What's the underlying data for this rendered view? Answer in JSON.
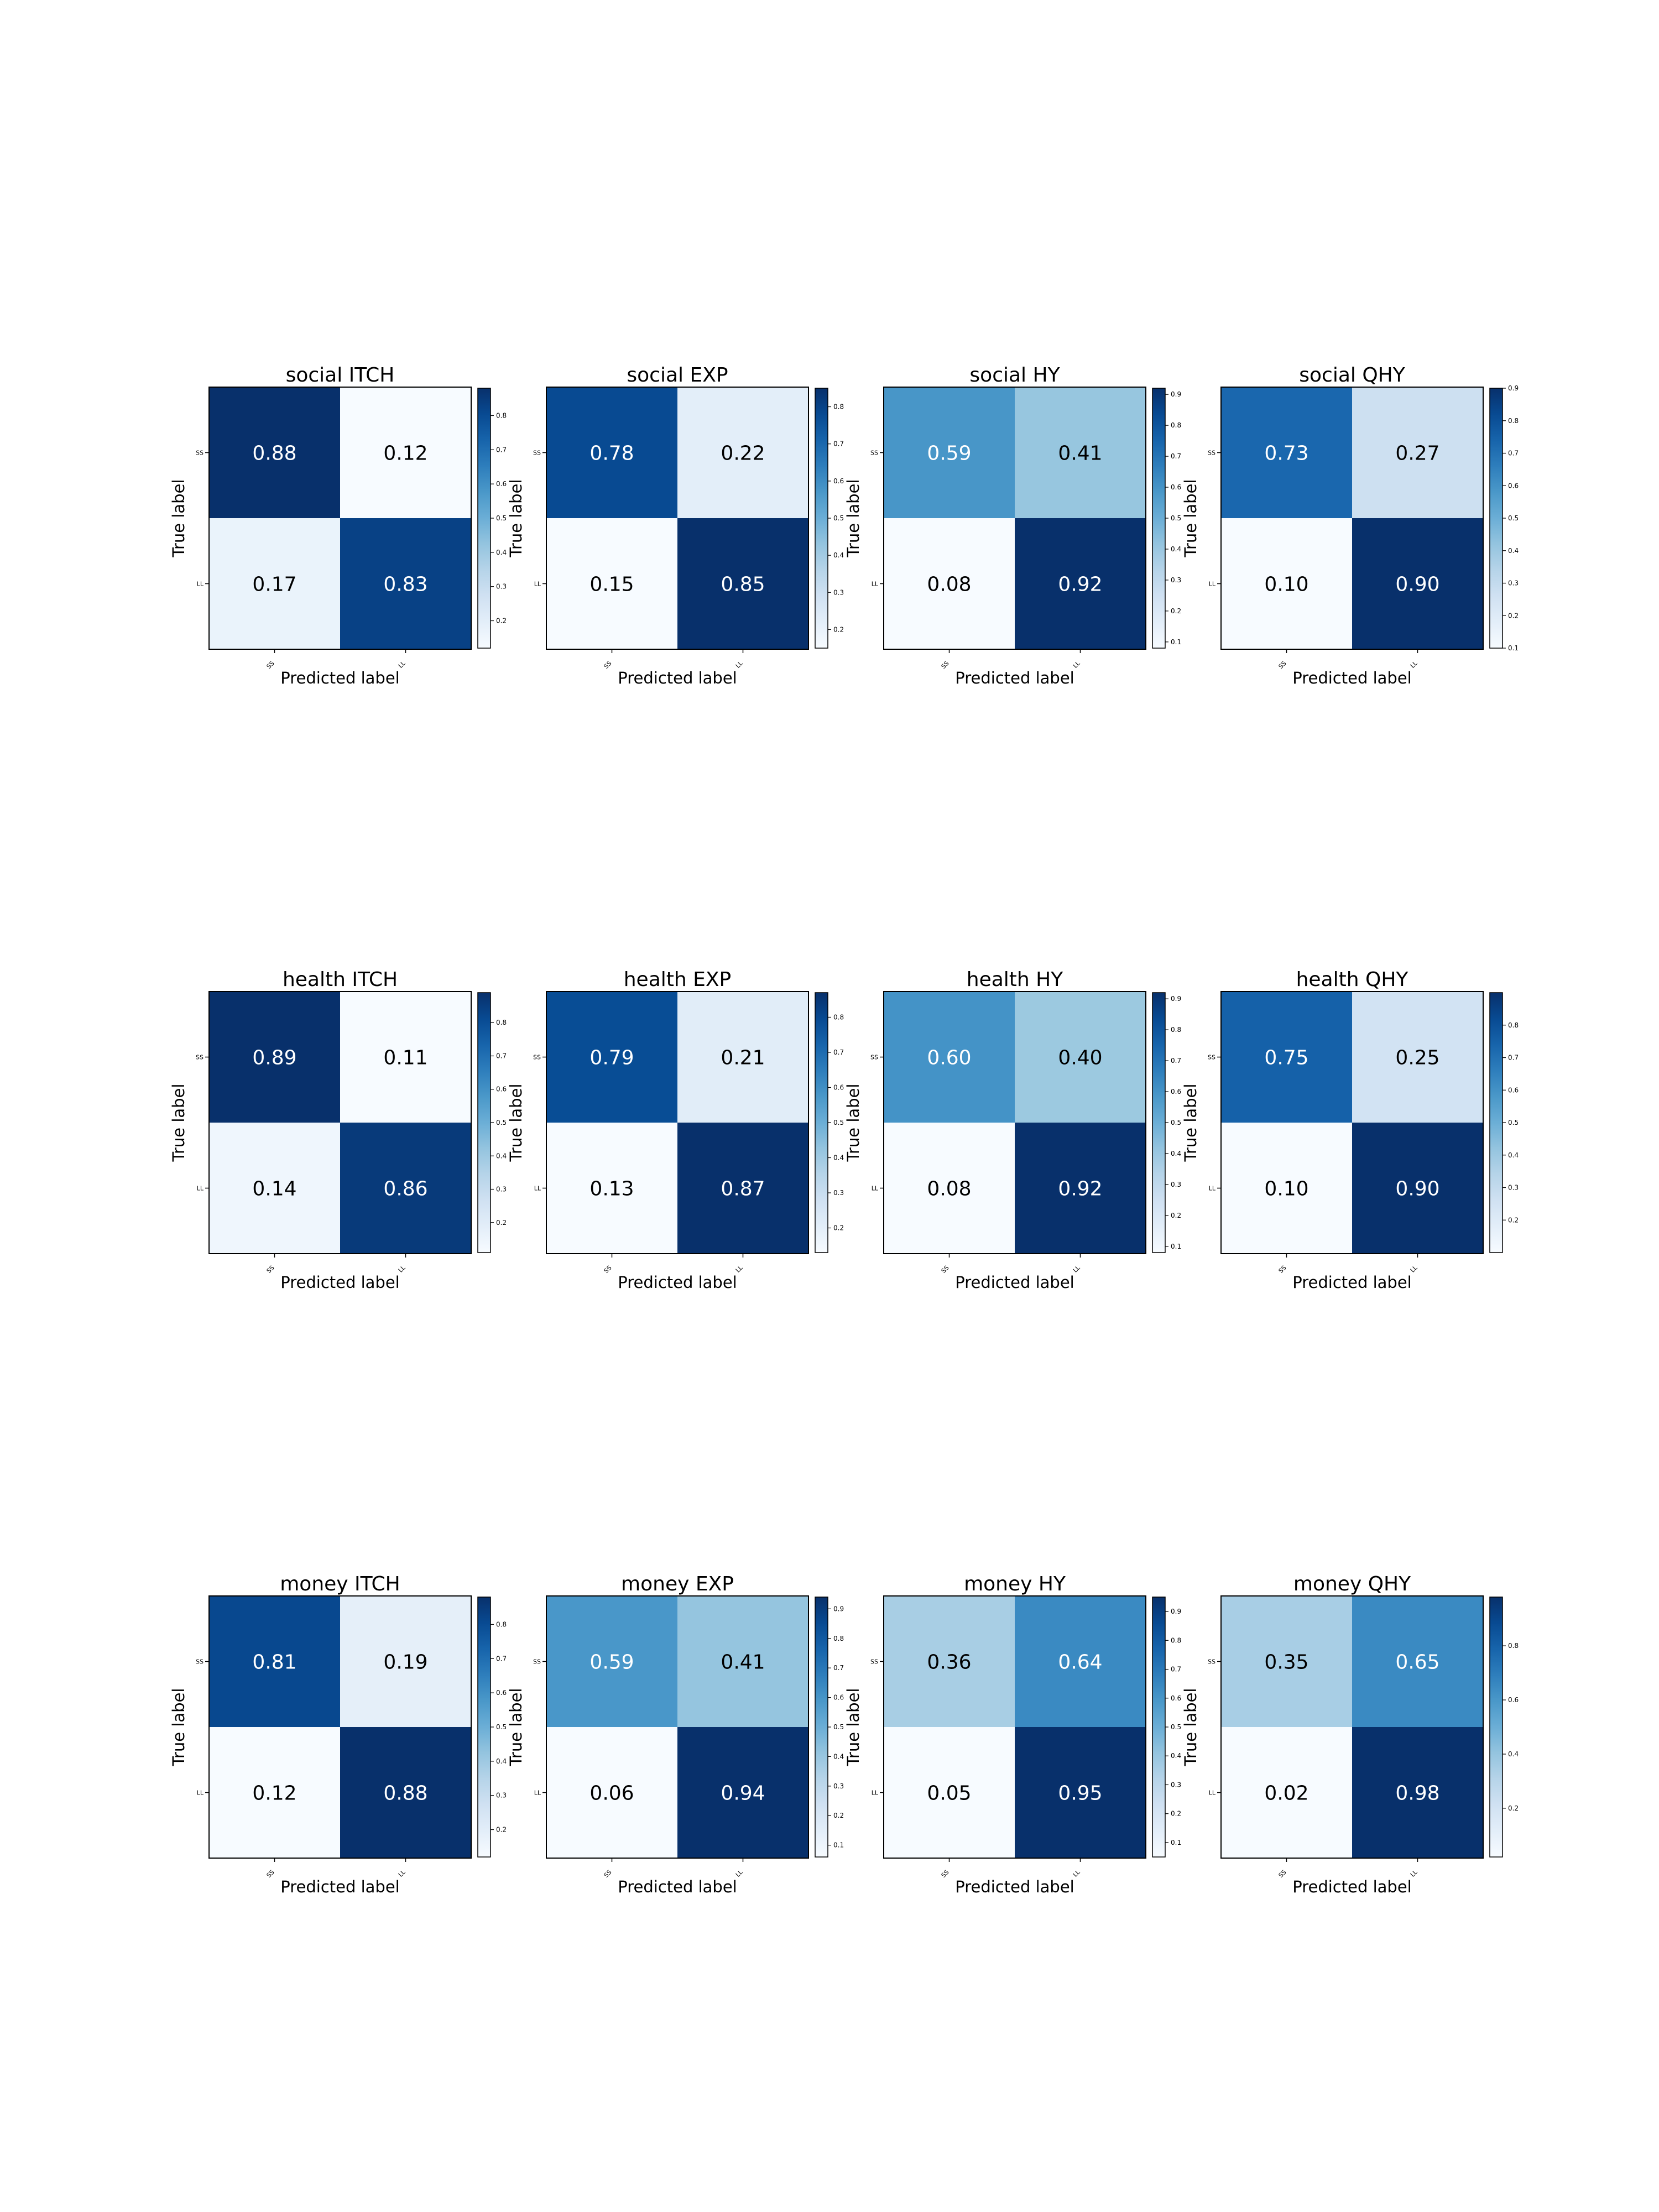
{
  "chart_data": [
    {
      "type": "heatmap",
      "title": "social ITCH",
      "xlabel": "Predicted label",
      "ylabel": "True label",
      "x_categories": [
        "SS",
        "LL"
      ],
      "y_categories": [
        "SS",
        "LL"
      ],
      "values": [
        [
          0.88,
          0.12
        ],
        [
          0.17,
          0.83
        ]
      ],
      "labels": [
        [
          "0.88",
          "0.12"
        ],
        [
          "0.17",
          "0.83"
        ]
      ],
      "colorbar": {
        "range": [
          0.12,
          0.88
        ],
        "ticks": [
          0.2,
          0.3,
          0.4,
          0.5,
          0.6,
          0.7,
          0.8
        ],
        "tick_labels": [
          "0.2",
          "0.3",
          "0.4",
          "0.5",
          "0.6",
          "0.7",
          "0.8"
        ]
      }
    },
    {
      "type": "heatmap",
      "title": "social EXP",
      "xlabel": "Predicted label",
      "ylabel": "True label",
      "x_categories": [
        "SS",
        "LL"
      ],
      "y_categories": [
        "SS",
        "LL"
      ],
      "values": [
        [
          0.78,
          0.22
        ],
        [
          0.15,
          0.85
        ]
      ],
      "labels": [
        [
          "0.78",
          "0.22"
        ],
        [
          "0.15",
          "0.85"
        ]
      ],
      "colorbar": {
        "range": [
          0.15,
          0.85
        ],
        "ticks": [
          0.2,
          0.3,
          0.4,
          0.5,
          0.6,
          0.7,
          0.8
        ],
        "tick_labels": [
          "0.2",
          "0.3",
          "0.4",
          "0.5",
          "0.6",
          "0.7",
          "0.8"
        ]
      }
    },
    {
      "type": "heatmap",
      "title": "social HY",
      "xlabel": "Predicted label",
      "ylabel": "True label",
      "x_categories": [
        "SS",
        "LL"
      ],
      "y_categories": [
        "SS",
        "LL"
      ],
      "values": [
        [
          0.59,
          0.41
        ],
        [
          0.08,
          0.92
        ]
      ],
      "labels": [
        [
          "0.59",
          "0.41"
        ],
        [
          "0.08",
          "0.92"
        ]
      ],
      "colorbar": {
        "range": [
          0.08,
          0.92
        ],
        "ticks": [
          0.1,
          0.2,
          0.3,
          0.4,
          0.5,
          0.6,
          0.7,
          0.8,
          0.9
        ],
        "tick_labels": [
          "0.1",
          "0.2",
          "0.3",
          "0.4",
          "0.5",
          "0.6",
          "0.7",
          "0.8",
          "0.9"
        ]
      }
    },
    {
      "type": "heatmap",
      "title": "social QHY",
      "xlabel": "Predicted label",
      "ylabel": "True label",
      "x_categories": [
        "SS",
        "LL"
      ],
      "y_categories": [
        "SS",
        "LL"
      ],
      "values": [
        [
          0.73,
          0.27
        ],
        [
          0.1,
          0.9
        ]
      ],
      "labels": [
        [
          "0.73",
          "0.27"
        ],
        [
          "0.10",
          "0.90"
        ]
      ],
      "colorbar": {
        "range": [
          0.1,
          0.9
        ],
        "ticks": [
          0.1,
          0.2,
          0.3,
          0.4,
          0.5,
          0.6,
          0.7,
          0.8,
          0.9
        ],
        "tick_labels": [
          "0.1",
          "0.2",
          "0.3",
          "0.4",
          "0.5",
          "0.6",
          "0.7",
          "0.8",
          "0.9"
        ]
      }
    },
    {
      "type": "heatmap",
      "title": "health ITCH",
      "xlabel": "Predicted label",
      "ylabel": "True label",
      "x_categories": [
        "SS",
        "LL"
      ],
      "y_categories": [
        "SS",
        "LL"
      ],
      "values": [
        [
          0.89,
          0.11
        ],
        [
          0.14,
          0.86
        ]
      ],
      "labels": [
        [
          "0.89",
          "0.11"
        ],
        [
          "0.14",
          "0.86"
        ]
      ],
      "colorbar": {
        "range": [
          0.11,
          0.89
        ],
        "ticks": [
          0.2,
          0.3,
          0.4,
          0.5,
          0.6,
          0.7,
          0.8
        ],
        "tick_labels": [
          "0.2",
          "0.3",
          "0.4",
          "0.5",
          "0.6",
          "0.7",
          "0.8"
        ]
      }
    },
    {
      "type": "heatmap",
      "title": "health EXP",
      "xlabel": "Predicted label",
      "ylabel": "True label",
      "x_categories": [
        "SS",
        "LL"
      ],
      "y_categories": [
        "SS",
        "LL"
      ],
      "values": [
        [
          0.79,
          0.21
        ],
        [
          0.13,
          0.87
        ]
      ],
      "labels": [
        [
          "0.79",
          "0.21"
        ],
        [
          "0.13",
          "0.87"
        ]
      ],
      "colorbar": {
        "range": [
          0.13,
          0.87
        ],
        "ticks": [
          0.2,
          0.3,
          0.4,
          0.5,
          0.6,
          0.7,
          0.8
        ],
        "tick_labels": [
          "0.2",
          "0.3",
          "0.4",
          "0.5",
          "0.6",
          "0.7",
          "0.8"
        ]
      }
    },
    {
      "type": "heatmap",
      "title": "health HY",
      "xlabel": "Predicted label",
      "ylabel": "True label",
      "x_categories": [
        "SS",
        "LL"
      ],
      "y_categories": [
        "SS",
        "LL"
      ],
      "values": [
        [
          0.6,
          0.4
        ],
        [
          0.08,
          0.92
        ]
      ],
      "labels": [
        [
          "0.60",
          "0.40"
        ],
        [
          "0.08",
          "0.92"
        ]
      ],
      "colorbar": {
        "range": [
          0.08,
          0.92
        ],
        "ticks": [
          0.1,
          0.2,
          0.3,
          0.4,
          0.5,
          0.6,
          0.7,
          0.8,
          0.9
        ],
        "tick_labels": [
          "0.1",
          "0.2",
          "0.3",
          "0.4",
          "0.5",
          "0.6",
          "0.7",
          "0.8",
          "0.9"
        ]
      }
    },
    {
      "type": "heatmap",
      "title": "health QHY",
      "xlabel": "Predicted label",
      "ylabel": "True label",
      "x_categories": [
        "SS",
        "LL"
      ],
      "y_categories": [
        "SS",
        "LL"
      ],
      "values": [
        [
          0.75,
          0.25
        ],
        [
          0.1,
          0.9
        ]
      ],
      "labels": [
        [
          "0.75",
          "0.25"
        ],
        [
          "0.10",
          "0.90"
        ]
      ],
      "colorbar": {
        "range": [
          0.1,
          0.9
        ],
        "ticks": [
          0.2,
          0.3,
          0.4,
          0.5,
          0.6,
          0.7,
          0.8
        ],
        "tick_labels": [
          "0.2",
          "0.3",
          "0.4",
          "0.5",
          "0.6",
          "0.7",
          "0.8"
        ]
      }
    },
    {
      "type": "heatmap",
      "title": "money ITCH",
      "xlabel": "Predicted label",
      "ylabel": "True label",
      "x_categories": [
        "SS",
        "LL"
      ],
      "y_categories": [
        "SS",
        "LL"
      ],
      "values": [
        [
          0.81,
          0.19
        ],
        [
          0.12,
          0.88
        ]
      ],
      "labels": [
        [
          "0.81",
          "0.19"
        ],
        [
          "0.12",
          "0.88"
        ]
      ],
      "colorbar": {
        "range": [
          0.12,
          0.88
        ],
        "ticks": [
          0.2,
          0.3,
          0.4,
          0.5,
          0.6,
          0.7,
          0.8
        ],
        "tick_labels": [
          "0.2",
          "0.3",
          "0.4",
          "0.5",
          "0.6",
          "0.7",
          "0.8"
        ]
      }
    },
    {
      "type": "heatmap",
      "title": "money EXP",
      "xlabel": "Predicted label",
      "ylabel": "True label",
      "x_categories": [
        "SS",
        "LL"
      ],
      "y_categories": [
        "SS",
        "LL"
      ],
      "values": [
        [
          0.59,
          0.41
        ],
        [
          0.06,
          0.94
        ]
      ],
      "labels": [
        [
          "0.59",
          "0.41"
        ],
        [
          "0.06",
          "0.94"
        ]
      ],
      "colorbar": {
        "range": [
          0.06,
          0.94
        ],
        "ticks": [
          0.1,
          0.2,
          0.3,
          0.4,
          0.5,
          0.6,
          0.7,
          0.8,
          0.9
        ],
        "tick_labels": [
          "0.1",
          "0.2",
          "0.3",
          "0.4",
          "0.5",
          "0.6",
          "0.7",
          "0.8",
          "0.9"
        ]
      }
    },
    {
      "type": "heatmap",
      "title": "money HY",
      "xlabel": "Predicted label",
      "ylabel": "True label",
      "x_categories": [
        "SS",
        "LL"
      ],
      "y_categories": [
        "SS",
        "LL"
      ],
      "values": [
        [
          0.36,
          0.64
        ],
        [
          0.05,
          0.95
        ]
      ],
      "labels": [
        [
          "0.36",
          "0.64"
        ],
        [
          "0.05",
          "0.95"
        ]
      ],
      "colorbar": {
        "range": [
          0.05,
          0.95
        ],
        "ticks": [
          0.1,
          0.2,
          0.3,
          0.4,
          0.5,
          0.6,
          0.7,
          0.8,
          0.9
        ],
        "tick_labels": [
          "0.1",
          "0.2",
          "0.3",
          "0.4",
          "0.5",
          "0.6",
          "0.7",
          "0.8",
          "0.9"
        ]
      }
    },
    {
      "type": "heatmap",
      "title": "money QHY",
      "xlabel": "Predicted label",
      "ylabel": "True label",
      "x_categories": [
        "SS",
        "LL"
      ],
      "y_categories": [
        "SS",
        "LL"
      ],
      "values": [
        [
          0.35,
          0.65
        ],
        [
          0.02,
          0.98
        ]
      ],
      "labels": [
        [
          "0.35",
          "0.65"
        ],
        [
          "0.02",
          "0.98"
        ]
      ],
      "colorbar": {
        "range": [
          0.02,
          0.98
        ],
        "ticks": [
          0.2,
          0.4,
          0.6,
          0.8
        ],
        "tick_labels": [
          "0.2",
          "0.4",
          "0.6",
          "0.8"
        ]
      }
    }
  ],
  "colormap": {
    "name": "Blues",
    "stops": [
      "#f7fbff",
      "#deebf7",
      "#c6dbef",
      "#9ecae1",
      "#6baed6",
      "#4292c6",
      "#2171b5",
      "#08519c",
      "#08306b"
    ],
    "text_dark": "#000000",
    "text_light": "#ffffff",
    "text_threshold": 0.5
  }
}
